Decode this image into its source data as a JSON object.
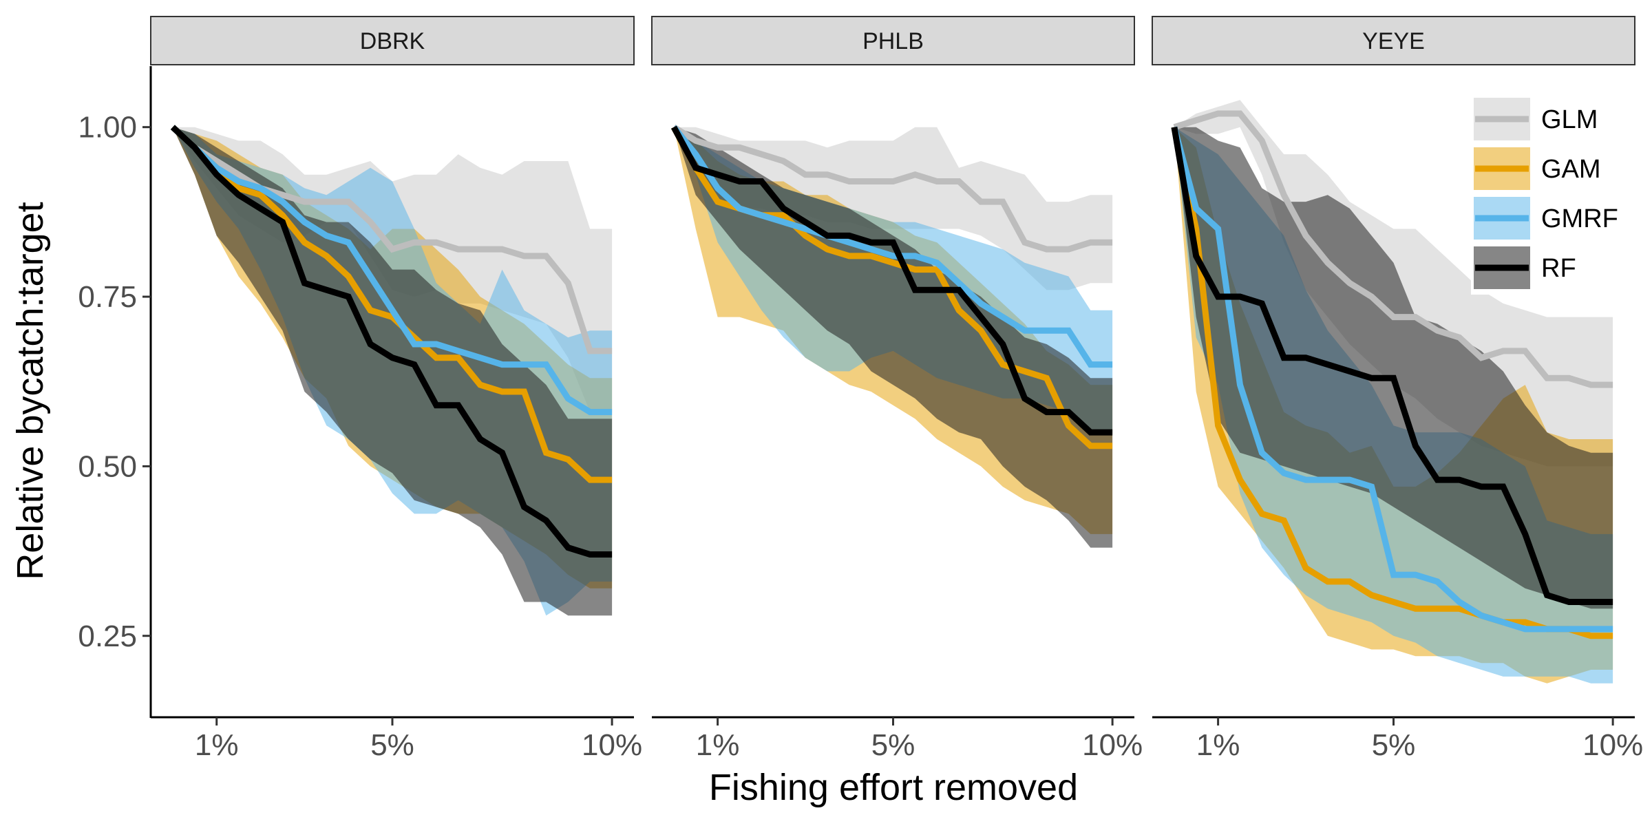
{
  "chart_data": {
    "type": "line",
    "facets": [
      "DBRK",
      "PHLB",
      "YEYE"
    ],
    "xlabel": "Fishing effort removed",
    "ylabel": "Relative bycatch:target",
    "x_tick_values": [
      1,
      5,
      10
    ],
    "x_tick_labels": [
      "1%",
      "5%",
      "10%"
    ],
    "xlim": [
      -0.5,
      10.5
    ],
    "y_tick_values": [
      0.25,
      0.5,
      0.75,
      1.0
    ],
    "y_tick_labels": [
      "0.25",
      "0.50",
      "0.75",
      "1.00"
    ],
    "ylim": [
      0.13,
      1.09
    ],
    "x": [
      0,
      0.5,
      1,
      1.5,
      2,
      2.5,
      3,
      3.5,
      4,
      4.5,
      5,
      5.5,
      6,
      6.5,
      7,
      7.5,
      8,
      8.5,
      9,
      9.5,
      10
    ],
    "legend": {
      "position": "inside-top-right"
    },
    "series": [
      {
        "name": "GLM",
        "color": "#bdbdbd",
        "band_color": "#cccccc",
        "band_opacity": 0.55
      },
      {
        "name": "GAM",
        "color": "#e69f00",
        "band_color": "#e69f00",
        "band_opacity": 0.5
      },
      {
        "name": "GMRF",
        "color": "#56b4e9",
        "band_color": "#56b4e9",
        "band_opacity": 0.5
      },
      {
        "name": "RF",
        "color": "#000000",
        "band_color": "#222222",
        "band_opacity": 0.55
      }
    ],
    "panels": [
      {
        "facet": "DBRK",
        "lines": {
          "GLM": [
            1.0,
            0.97,
            0.95,
            0.93,
            0.91,
            0.9,
            0.89,
            0.89,
            0.89,
            0.86,
            0.82,
            0.83,
            0.83,
            0.82,
            0.82,
            0.82,
            0.81,
            0.81,
            0.77,
            0.67,
            0.67
          ],
          "GAM": [
            1.0,
            0.97,
            0.94,
            0.91,
            0.9,
            0.87,
            0.83,
            0.81,
            0.78,
            0.73,
            0.72,
            0.69,
            0.66,
            0.66,
            0.62,
            0.61,
            0.61,
            0.52,
            0.51,
            0.48,
            0.48
          ],
          "GMRF": [
            1.0,
            0.97,
            0.94,
            0.92,
            0.91,
            0.89,
            0.86,
            0.84,
            0.83,
            0.78,
            0.73,
            0.68,
            0.68,
            0.67,
            0.66,
            0.65,
            0.65,
            0.65,
            0.6,
            0.58,
            0.58
          ],
          "RF": [
            1.0,
            0.97,
            0.93,
            0.9,
            0.88,
            0.86,
            0.77,
            0.76,
            0.75,
            0.68,
            0.66,
            0.65,
            0.59,
            0.59,
            0.54,
            0.52,
            0.44,
            0.42,
            0.38,
            0.37,
            0.37
          ]
        },
        "bands": {
          "GLM": {
            "upper": [
              1.0,
              1.0,
              0.99,
              0.98,
              0.98,
              0.96,
              0.93,
              0.93,
              0.94,
              0.95,
              0.92,
              0.93,
              0.93,
              0.96,
              0.94,
              0.93,
              0.95,
              0.95,
              0.95,
              0.85,
              0.85
            ],
            "lower": [
              1.0,
              0.95,
              0.91,
              0.87,
              0.85,
              0.83,
              0.84,
              0.86,
              0.86,
              0.81,
              0.76,
              0.75,
              0.76,
              0.74,
              0.74,
              0.73,
              0.72,
              0.71,
              0.66,
              0.58,
              0.58
            ]
          },
          "GAM": {
            "upper": [
              1.0,
              0.99,
              0.98,
              0.96,
              0.94,
              0.93,
              0.89,
              0.87,
              0.85,
              0.82,
              0.85,
              0.85,
              0.82,
              0.79,
              0.75,
              0.73,
              0.71,
              0.68,
              0.65,
              0.63,
              0.63
            ],
            "lower": [
              1.0,
              0.93,
              0.84,
              0.78,
              0.74,
              0.69,
              0.63,
              0.6,
              0.53,
              0.5,
              0.48,
              0.46,
              0.44,
              0.43,
              0.43,
              0.41,
              0.39,
              0.37,
              0.34,
              0.32,
              0.32
            ]
          },
          "GMRF": {
            "upper": [
              1.0,
              0.99,
              0.96,
              0.95,
              0.94,
              0.93,
              0.91,
              0.9,
              0.92,
              0.94,
              0.92,
              0.85,
              0.77,
              0.74,
              0.71,
              0.79,
              0.73,
              0.71,
              0.69,
              0.7,
              0.7
            ],
            "lower": [
              1.0,
              0.94,
              0.89,
              0.85,
              0.79,
              0.72,
              0.63,
              0.56,
              0.54,
              0.51,
              0.46,
              0.43,
              0.43,
              0.45,
              0.43,
              0.41,
              0.36,
              0.28,
              0.3,
              0.33,
              0.33
            ]
          },
          "RF": {
            "upper": [
              1.0,
              0.99,
              0.97,
              0.95,
              0.93,
              0.91,
              0.87,
              0.86,
              0.86,
              0.83,
              0.79,
              0.79,
              0.76,
              0.74,
              0.73,
              0.68,
              0.65,
              0.62,
              0.57,
              0.57,
              0.57
            ],
            "lower": [
              1.0,
              0.93,
              0.84,
              0.8,
              0.75,
              0.7,
              0.61,
              0.58,
              0.54,
              0.51,
              0.49,
              0.45,
              0.44,
              0.43,
              0.41,
              0.37,
              0.3,
              0.3,
              0.28,
              0.28,
              0.28
            ]
          }
        }
      },
      {
        "facet": "PHLB",
        "lines": {
          "GLM": [
            1.0,
            0.98,
            0.97,
            0.97,
            0.96,
            0.95,
            0.93,
            0.93,
            0.92,
            0.92,
            0.92,
            0.93,
            0.92,
            0.92,
            0.89,
            0.89,
            0.83,
            0.82,
            0.82,
            0.83,
            0.83
          ],
          "GAM": [
            1.0,
            0.94,
            0.89,
            0.88,
            0.87,
            0.87,
            0.84,
            0.82,
            0.81,
            0.81,
            0.8,
            0.79,
            0.79,
            0.73,
            0.7,
            0.65,
            0.64,
            0.63,
            0.56,
            0.53,
            0.53
          ],
          "GMRF": [
            1.0,
            0.96,
            0.91,
            0.88,
            0.87,
            0.86,
            0.85,
            0.84,
            0.83,
            0.82,
            0.81,
            0.81,
            0.8,
            0.77,
            0.74,
            0.72,
            0.7,
            0.7,
            0.7,
            0.65,
            0.65
          ],
          "RF": [
            1.0,
            0.94,
            0.93,
            0.92,
            0.92,
            0.88,
            0.86,
            0.84,
            0.84,
            0.83,
            0.83,
            0.76,
            0.76,
            0.76,
            0.72,
            0.68,
            0.6,
            0.58,
            0.58,
            0.55,
            0.55
          ]
        },
        "bands": {
          "GLM": {
            "upper": [
              1.0,
              1.0,
              0.99,
              0.98,
              0.98,
              0.98,
              0.98,
              0.97,
              0.98,
              0.98,
              0.98,
              1.0,
              1.0,
              0.94,
              0.95,
              0.94,
              0.93,
              0.89,
              0.89,
              0.9,
              0.9
            ],
            "lower": [
              1.0,
              0.94,
              0.9,
              0.88,
              0.88,
              0.87,
              0.87,
              0.86,
              0.86,
              0.85,
              0.85,
              0.85,
              0.85,
              0.85,
              0.84,
              0.82,
              0.79,
              0.76,
              0.76,
              0.77,
              0.77
            ]
          },
          "GAM": {
            "upper": [
              1.0,
              0.98,
              0.95,
              0.93,
              0.92,
              0.92,
              0.9,
              0.9,
              0.88,
              0.87,
              0.86,
              0.84,
              0.83,
              0.8,
              0.77,
              0.74,
              0.71,
              0.67,
              0.65,
              0.62,
              0.62
            ],
            "lower": [
              1.0,
              0.85,
              0.72,
              0.72,
              0.71,
              0.7,
              0.66,
              0.64,
              0.62,
              0.61,
              0.59,
              0.57,
              0.54,
              0.52,
              0.5,
              0.47,
              0.45,
              0.44,
              0.43,
              0.4,
              0.4
            ]
          },
          "GMRF": {
            "upper": [
              1.0,
              0.98,
              0.96,
              0.94,
              0.92,
              0.91,
              0.9,
              0.89,
              0.88,
              0.87,
              0.86,
              0.86,
              0.85,
              0.84,
              0.83,
              0.82,
              0.8,
              0.79,
              0.78,
              0.73,
              0.73
            ],
            "lower": [
              1.0,
              0.93,
              0.83,
              0.78,
              0.73,
              0.69,
              0.66,
              0.64,
              0.64,
              0.66,
              0.67,
              0.65,
              0.63,
              0.62,
              0.61,
              0.6,
              0.6,
              0.59,
              0.58,
              0.55,
              0.55
            ]
          },
          "RF": {
            "upper": [
              1.0,
              0.99,
              0.97,
              0.95,
              0.93,
              0.91,
              0.9,
              0.89,
              0.88,
              0.86,
              0.84,
              0.82,
              0.79,
              0.77,
              0.75,
              0.72,
              0.69,
              0.68,
              0.66,
              0.63,
              0.63
            ],
            "lower": [
              1.0,
              0.9,
              0.86,
              0.82,
              0.79,
              0.76,
              0.73,
              0.7,
              0.68,
              0.64,
              0.62,
              0.6,
              0.57,
              0.55,
              0.54,
              0.5,
              0.47,
              0.45,
              0.42,
              0.38,
              0.38
            ]
          }
        }
      },
      {
        "facet": "YEYE",
        "lines": {
          "GLM": [
            1.0,
            1.01,
            1.02,
            1.02,
            0.98,
            0.9,
            0.84,
            0.8,
            0.77,
            0.75,
            0.72,
            0.72,
            0.7,
            0.69,
            0.66,
            0.67,
            0.67,
            0.63,
            0.63,
            0.62,
            0.62
          ],
          "GAM": [
            1.0,
            0.85,
            0.56,
            0.48,
            0.43,
            0.42,
            0.35,
            0.33,
            0.33,
            0.31,
            0.3,
            0.29,
            0.29,
            0.29,
            0.28,
            0.27,
            0.27,
            0.26,
            0.26,
            0.25,
            0.25
          ],
          "GMRF": [
            1.0,
            0.88,
            0.85,
            0.62,
            0.52,
            0.49,
            0.48,
            0.48,
            0.48,
            0.47,
            0.34,
            0.34,
            0.33,
            0.3,
            0.28,
            0.27,
            0.26,
            0.26,
            0.26,
            0.26,
            0.26
          ],
          "RF": [
            1.0,
            0.81,
            0.75,
            0.75,
            0.74,
            0.66,
            0.66,
            0.65,
            0.64,
            0.63,
            0.63,
            0.53,
            0.48,
            0.48,
            0.47,
            0.47,
            0.4,
            0.31,
            0.3,
            0.3,
            0.3
          ]
        },
        "bands": {
          "GLM": {
            "upper": [
              1.0,
              1.02,
              1.03,
              1.04,
              1.0,
              0.96,
              0.96,
              0.93,
              0.89,
              0.87,
              0.85,
              0.85,
              0.82,
              0.79,
              0.76,
              0.74,
              0.73,
              0.72,
              0.72,
              0.72,
              0.72
            ],
            "lower": [
              1.0,
              0.99,
              0.99,
              1.0,
              0.93,
              0.83,
              0.76,
              0.72,
              0.68,
              0.65,
              0.62,
              0.6,
              0.57,
              0.55,
              0.53,
              0.52,
              0.51,
              0.5,
              0.5,
              0.5,
              0.5
            ]
          },
          "GAM": {
            "upper": [
              1.0,
              0.97,
              0.84,
              0.74,
              0.66,
              0.58,
              0.56,
              0.55,
              0.52,
              0.53,
              0.47,
              0.47,
              0.49,
              0.52,
              0.56,
              0.6,
              0.62,
              0.55,
              0.54,
              0.54,
              0.54
            ],
            "lower": [
              1.0,
              0.61,
              0.47,
              0.43,
              0.39,
              0.35,
              0.3,
              0.25,
              0.24,
              0.23,
              0.23,
              0.22,
              0.22,
              0.22,
              0.21,
              0.21,
              0.19,
              0.18,
              0.19,
              0.2,
              0.2
            ]
          },
          "GMRF": {
            "upper": [
              1.0,
              0.98,
              0.96,
              0.92,
              0.88,
              0.84,
              0.76,
              0.7,
              0.66,
              0.62,
              0.56,
              0.55,
              0.55,
              0.55,
              0.54,
              0.52,
              0.5,
              0.42,
              0.41,
              0.4,
              0.4
            ],
            "lower": [
              1.0,
              0.69,
              0.62,
              0.46,
              0.38,
              0.34,
              0.31,
              0.29,
              0.28,
              0.27,
              0.25,
              0.24,
              0.22,
              0.21,
              0.2,
              0.19,
              0.19,
              0.19,
              0.19,
              0.18,
              0.18
            ]
          },
          "RF": {
            "upper": [
              1.0,
              1.0,
              0.98,
              0.97,
              0.91,
              0.89,
              0.89,
              0.9,
              0.88,
              0.84,
              0.8,
              0.72,
              0.71,
              0.69,
              0.67,
              0.64,
              0.59,
              0.55,
              0.53,
              0.52,
              0.52
            ],
            "lower": [
              1.0,
              0.72,
              0.57,
              0.52,
              0.51,
              0.5,
              0.49,
              0.48,
              0.47,
              0.46,
              0.44,
              0.42,
              0.4,
              0.38,
              0.36,
              0.34,
              0.32,
              0.31,
              0.3,
              0.29,
              0.29
            ]
          }
        }
      }
    ]
  }
}
